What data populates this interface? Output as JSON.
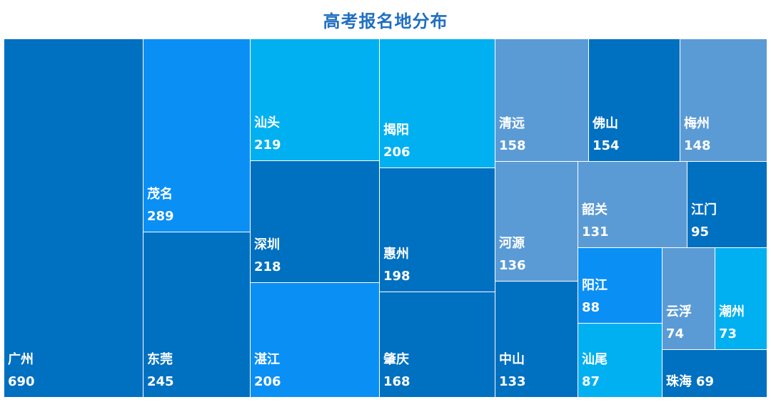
{
  "chart_data": {
    "type": "treemap",
    "title": "高考报名地分布",
    "items": [
      {
        "name": "广州",
        "value": 690,
        "color": "#0070c0"
      },
      {
        "name": "茂名",
        "value": 289,
        "color": "#0a8ff5"
      },
      {
        "name": "东莞",
        "value": 245,
        "color": "#0070c0"
      },
      {
        "name": "汕头",
        "value": 219,
        "color": "#00b0f0"
      },
      {
        "name": "深圳",
        "value": 218,
        "color": "#0070c0"
      },
      {
        "name": "湛江",
        "value": 206,
        "color": "#0a8ff5"
      },
      {
        "name": "揭阳",
        "value": 206,
        "color": "#00b0f0"
      },
      {
        "name": "惠州",
        "value": 198,
        "color": "#0070c0"
      },
      {
        "name": "肇庆",
        "value": 168,
        "color": "#0070c0"
      },
      {
        "name": "清远",
        "value": 158,
        "color": "#5b9bd5"
      },
      {
        "name": "佛山",
        "value": 154,
        "color": "#0070c0"
      },
      {
        "name": "梅州",
        "value": 148,
        "color": "#5b9bd5"
      },
      {
        "name": "河源",
        "value": 136,
        "color": "#5b9bd5"
      },
      {
        "name": "中山",
        "value": 133,
        "color": "#0070c0"
      },
      {
        "name": "韶关",
        "value": 131,
        "color": "#5b9bd5"
      },
      {
        "name": "江门",
        "value": 95,
        "color": "#0070c0"
      },
      {
        "name": "阳江",
        "value": 88,
        "color": "#0a8ff5"
      },
      {
        "name": "汕尾",
        "value": 87,
        "color": "#00b0f0"
      },
      {
        "name": "云浮",
        "value": 74,
        "color": "#5b9bd5"
      },
      {
        "name": "潮州",
        "value": 73,
        "color": "#00b0f0"
      },
      {
        "name": "珠海",
        "value": 69,
        "color": "#0070c0",
        "inline": true
      }
    ]
  }
}
